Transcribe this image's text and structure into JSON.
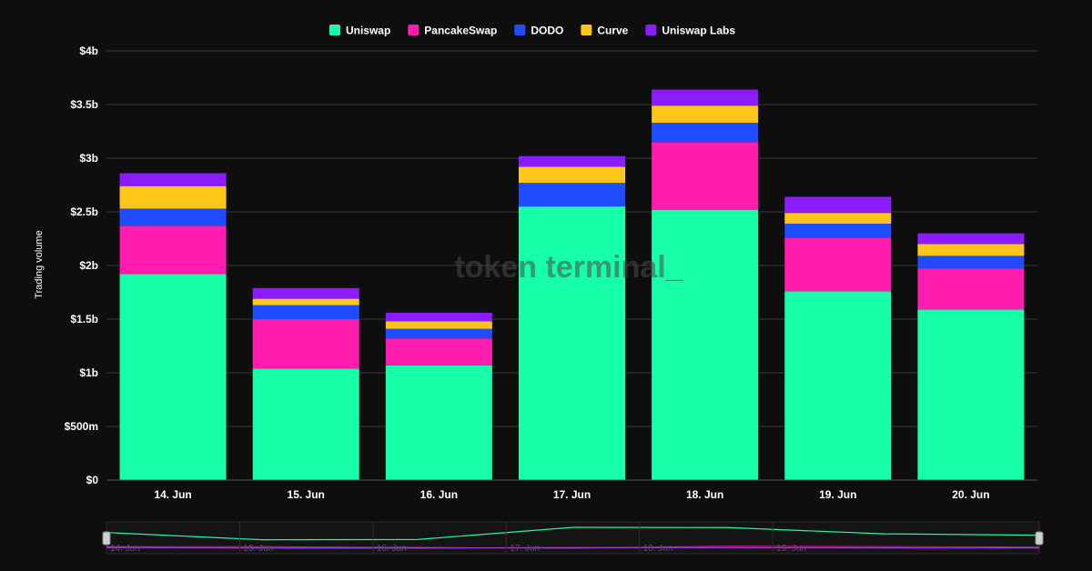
{
  "watermark": "token terminal_",
  "chart_data": {
    "type": "bar",
    "stacked": true,
    "title": "",
    "xlabel": "",
    "ylabel": "Trading volume",
    "categories": [
      "14. Jun",
      "15. Jun",
      "16. Jun",
      "17. Jun",
      "18. Jun",
      "19. Jun",
      "20. Jun"
    ],
    "ylim": [
      0,
      4000000000
    ],
    "y_ticks": [
      {
        "value": 0,
        "label": "$0"
      },
      {
        "value": 500000000,
        "label": "$500m"
      },
      {
        "value": 1000000000,
        "label": "$1b"
      },
      {
        "value": 1500000000,
        "label": "$1.5b"
      },
      {
        "value": 2000000000,
        "label": "$2b"
      },
      {
        "value": 2500000000,
        "label": "$2.5b"
      },
      {
        "value": 3000000000,
        "label": "$3b"
      },
      {
        "value": 3500000000,
        "label": "$3.5b"
      },
      {
        "value": 4000000000,
        "label": "$4b"
      }
    ],
    "grid": true,
    "legend_position": "top-center",
    "series": [
      {
        "name": "Uniswap",
        "color": "#17ffa8",
        "values": [
          1920000000,
          1040000000,
          1070000000,
          2550000000,
          2520000000,
          1760000000,
          1590000000
        ]
      },
      {
        "name": "PancakeSwap",
        "color": "#ff1cae",
        "values": [
          450000000,
          460000000,
          250000000,
          0,
          630000000,
          500000000,
          380000000
        ]
      },
      {
        "name": "DODO",
        "color": "#1f4cff",
        "values": [
          160000000,
          130000000,
          90000000,
          220000000,
          180000000,
          130000000,
          120000000
        ]
      },
      {
        "name": "Curve",
        "color": "#ffc61a",
        "values": [
          210000000,
          60000000,
          70000000,
          150000000,
          160000000,
          100000000,
          110000000
        ]
      },
      {
        "name": "Uniswap Labs",
        "color": "#8a1cff",
        "values": [
          120000000,
          100000000,
          80000000,
          100000000,
          150000000,
          150000000,
          100000000
        ]
      }
    ],
    "navigator": {
      "labels": [
        "14. Jun",
        "15. Jun",
        "16. Jun",
        "17. Jun",
        "18. Jun",
        "19. Jun"
      ]
    }
  }
}
